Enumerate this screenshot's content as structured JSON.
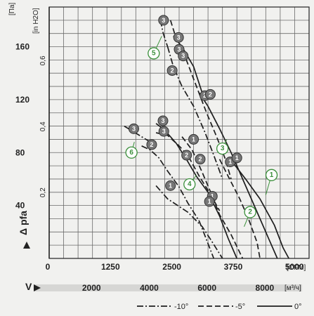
{
  "chart_data": {
    "type": "line",
    "y_unit_left": "[Па]",
    "y_unit_right": "[in H2O]",
    "ylabel": "Δ pfa",
    "y_ticks_pa": [
      40,
      80,
      120,
      160
    ],
    "y_ticks_inh2o": [
      "0,2",
      "0,4",
      "0,6"
    ],
    "x_unit_top": "[CFM]",
    "x_ticks_cfm": [
      "0",
      "1250",
      "2500",
      "3750",
      "5000"
    ],
    "x_symbol": "V",
    "x_unit_bottom": "[м³/ч]",
    "x_ticks_m3h": [
      "2000",
      "4000",
      "6000",
      "8000"
    ],
    "xlim_m3h": [
      0,
      9000
    ],
    "ylim_pa": [
      0,
      190
    ],
    "legend": [
      {
        "label": "-10°",
        "style": "dashdot"
      },
      {
        "label": "-5°",
        "style": "dashed"
      },
      {
        "label": "0°",
        "style": "solid"
      }
    ],
    "series": [
      {
        "id": "1",
        "style": "solid",
        "points": [
          [
            6270,
            75
          ],
          [
            6800,
            60
          ],
          [
            7300,
            45
          ],
          [
            7800,
            25
          ],
          [
            8100,
            8
          ],
          [
            8300,
            0
          ]
        ]
      },
      {
        "id": "1",
        "style": "dashed",
        "points": [
          [
            5900,
            75
          ],
          [
            6200,
            62
          ],
          [
            6600,
            45
          ],
          [
            6900,
            30
          ],
          [
            7200,
            12
          ],
          [
            7300,
            0
          ]
        ]
      },
      {
        "id": "1",
        "style": "dashdot",
        "points": [
          [
            3700,
            55
          ],
          [
            4100,
            45
          ],
          [
            4800,
            35
          ],
          [
            5300,
            24
          ],
          [
            5600,
            14
          ],
          [
            6000,
            0
          ]
        ]
      },
      {
        "id": "2",
        "style": "solid",
        "points": [
          [
            5200,
            125
          ],
          [
            5500,
            115
          ],
          [
            5900,
            98
          ],
          [
            6300,
            80
          ],
          [
            6700,
            60
          ],
          [
            7100,
            40
          ],
          [
            7600,
            15
          ],
          [
            7900,
            0
          ]
        ]
      },
      {
        "id": "2",
        "style": "dashed",
        "points": [
          [
            4600,
            92
          ],
          [
            4950,
            82
          ],
          [
            5300,
            65
          ],
          [
            5650,
            47
          ],
          [
            5900,
            33
          ],
          [
            6300,
            18
          ],
          [
            6700,
            0
          ]
        ]
      },
      {
        "id": "2",
        "style": "dashdot",
        "points": [
          [
            3200,
            85
          ],
          [
            3500,
            82
          ],
          [
            3800,
            76
          ],
          [
            4100,
            66
          ],
          [
            4500,
            54
          ],
          [
            4800,
            42
          ],
          [
            5200,
            28
          ],
          [
            5700,
            0
          ]
        ]
      },
      {
        "id": "2",
        "style": "dashdot",
        "points": [
          [
            4100,
            160
          ],
          [
            4300,
            145
          ],
          [
            4600,
            130
          ],
          [
            5000,
            115
          ],
          [
            5400,
            95
          ],
          [
            5700,
            78
          ],
          [
            6000,
            60
          ]
        ]
      },
      {
        "id": "3",
        "style": "solid",
        "points": [
          [
            4300,
            168
          ],
          [
            4600,
            160
          ],
          [
            5000,
            145
          ],
          [
            5300,
            125
          ]
        ]
      },
      {
        "id": "3",
        "style": "dashed",
        "points": [
          [
            4200,
            180
          ],
          [
            4400,
            166
          ],
          [
            4750,
            150
          ],
          [
            5100,
            130
          ],
          [
            5450,
            110
          ],
          [
            5800,
            92
          ],
          [
            6100,
            75
          ],
          [
            6300,
            60
          ]
        ]
      },
      {
        "id": "3",
        "style": "dashdot",
        "points": [
          [
            3850,
            180
          ],
          [
            3950,
            170
          ],
          [
            4100,
            160
          ]
        ]
      },
      {
        "id": "3",
        "style": "dashdot",
        "points": [
          [
            2600,
            100
          ],
          [
            2900,
            96
          ],
          [
            3200,
            92
          ],
          [
            3500,
            88
          ]
        ]
      },
      {
        "id": "4",
        "style": "solid",
        "points": [
          [
            3700,
            102
          ],
          [
            4000,
            97
          ],
          [
            4400,
            87
          ],
          [
            4750,
            75
          ],
          [
            5100,
            62
          ],
          [
            5500,
            50
          ],
          [
            5900,
            32
          ],
          [
            6200,
            15
          ],
          [
            6500,
            0
          ]
        ]
      },
      {
        "id": "4",
        "style": "dashed",
        "points": [
          [
            3700,
            95
          ],
          [
            4100,
            93
          ],
          [
            4500,
            85
          ],
          [
            4800,
            78
          ],
          [
            5200,
            62
          ],
          [
            5600,
            48
          ],
          [
            5900,
            36
          ]
        ]
      }
    ],
    "markers": [
      {
        "label": "3",
        "x": 3960,
        "y": 180
      },
      {
        "label": "3",
        "x": 4480,
        "y": 167
      },
      {
        "label": "3",
        "x": 4500,
        "y": 158
      },
      {
        "label": "3",
        "x": 4640,
        "y": 153
      },
      {
        "label": "2",
        "x": 4260,
        "y": 142
      },
      {
        "label": "2",
        "x": 5390,
        "y": 123
      },
      {
        "label": "2",
        "x": 5580,
        "y": 124
      },
      {
        "label": "3",
        "x": 3940,
        "y": 104
      },
      {
        "label": "3",
        "x": 3970,
        "y": 96
      },
      {
        "label": "3",
        "x": 2930,
        "y": 98
      },
      {
        "label": "1",
        "x": 5000,
        "y": 90
      },
      {
        "label": "2",
        "x": 3550,
        "y": 86
      },
      {
        "label": "2",
        "x": 4760,
        "y": 78
      },
      {
        "label": "2",
        "x": 5230,
        "y": 75
      },
      {
        "label": "1",
        "x": 6270,
        "y": 73
      },
      {
        "label": "1",
        "x": 6500,
        "y": 76
      },
      {
        "label": "1",
        "x": 4200,
        "y": 55
      },
      {
        "label": "1",
        "x": 5650,
        "y": 47
      },
      {
        "label": "1",
        "x": 5550,
        "y": 43
      }
    ],
    "tags": [
      {
        "label": "5",
        "x": 3620,
        "y": 155,
        "lx": 3900,
        "ly": 168
      },
      {
        "label": "3",
        "x": 6000,
        "y": 83,
        "lx": 6150,
        "ly": 90
      },
      {
        "label": "6",
        "x": 2850,
        "y": 80,
        "lx": 2950,
        "ly": 88
      },
      {
        "label": "4",
        "x": 4860,
        "y": 56,
        "lx": 5100,
        "ly": 63
      },
      {
        "label": "1",
        "x": 7700,
        "y": 63,
        "lx": 7500,
        "ly": 48
      },
      {
        "label": "2",
        "x": 6960,
        "y": 35,
        "lx": 6750,
        "ly": 24
      }
    ]
  }
}
